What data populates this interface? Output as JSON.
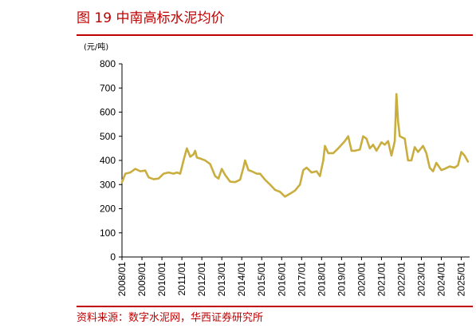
{
  "figure": {
    "title": "图 19 中南高标水泥均价",
    "source": "资料来源：数字水泥网，华西证券研究所"
  },
  "chart_data": {
    "type": "line",
    "title": "图 19 中南高标水泥均价",
    "ylabel": "(元/吨)",
    "xlabel": "",
    "ylim": [
      0,
      800
    ],
    "y_ticks": [
      0,
      100,
      200,
      300,
      400,
      500,
      600,
      700,
      800
    ],
    "x_ticks": [
      "2008/01",
      "2009/01",
      "2010/01",
      "2011/01",
      "2012/01",
      "2013/01",
      "2014/01",
      "2015/01",
      "2016/01",
      "2017/01",
      "2018/01",
      "2019/01",
      "2020/01",
      "2021/01",
      "2022/01",
      "2023/01",
      "2024/01",
      "2025/01"
    ],
    "grid": false,
    "legend": "none",
    "series": [
      {
        "color": "#c9ae3f",
        "points": [
          [
            "2008/01",
            310
          ],
          [
            "2008/03",
            345
          ],
          [
            "2008/06",
            350
          ],
          [
            "2008/09",
            365
          ],
          [
            "2008/12",
            355
          ],
          [
            "2009/03",
            358
          ],
          [
            "2009/05",
            330
          ],
          [
            "2009/08",
            322
          ],
          [
            "2009/11",
            325
          ],
          [
            "2010/02",
            345
          ],
          [
            "2010/05",
            350
          ],
          [
            "2010/08",
            345
          ],
          [
            "2010/10",
            350
          ],
          [
            "2010/12",
            345
          ],
          [
            "2011/02",
            400
          ],
          [
            "2011/04",
            450
          ],
          [
            "2011/06",
            415
          ],
          [
            "2011/08",
            425
          ],
          [
            "2011/09",
            440
          ],
          [
            "2011/10",
            412
          ],
          [
            "2011/12",
            408
          ],
          [
            "2012/03",
            400
          ],
          [
            "2012/06",
            385
          ],
          [
            "2012/09",
            335
          ],
          [
            "2012/11",
            325
          ],
          [
            "2013/01",
            365
          ],
          [
            "2013/03",
            340
          ],
          [
            "2013/06",
            312
          ],
          [
            "2013/09",
            310
          ],
          [
            "2013/12",
            320
          ],
          [
            "2014/02",
            370
          ],
          [
            "2014/03",
            400
          ],
          [
            "2014/05",
            360
          ],
          [
            "2014/07",
            355
          ],
          [
            "2014/10",
            345
          ],
          [
            "2014/12",
            345
          ],
          [
            "2015/03",
            320
          ],
          [
            "2015/06",
            300
          ],
          [
            "2015/09",
            278
          ],
          [
            "2015/12",
            270
          ],
          [
            "2016/03",
            250
          ],
          [
            "2016/06",
            262
          ],
          [
            "2016/09",
            275
          ],
          [
            "2016/12",
            300
          ],
          [
            "2017/02",
            360
          ],
          [
            "2017/04",
            370
          ],
          [
            "2017/07",
            350
          ],
          [
            "2017/10",
            355
          ],
          [
            "2017/12",
            335
          ],
          [
            "2018/02",
            400
          ],
          [
            "2018/03",
            460
          ],
          [
            "2018/05",
            430
          ],
          [
            "2018/08",
            430
          ],
          [
            "2018/11",
            450
          ],
          [
            "2019/03",
            480
          ],
          [
            "2019/05",
            500
          ],
          [
            "2019/07",
            440
          ],
          [
            "2019/09",
            440
          ],
          [
            "2019/12",
            445
          ],
          [
            "2020/02",
            500
          ],
          [
            "2020/04",
            490
          ],
          [
            "2020/06",
            450
          ],
          [
            "2020/08",
            465
          ],
          [
            "2020/10",
            440
          ],
          [
            "2021/01",
            475
          ],
          [
            "2021/03",
            465
          ],
          [
            "2021/05",
            480
          ],
          [
            "2021/07",
            420
          ],
          [
            "2021/09",
            480
          ],
          [
            "2021/10",
            675
          ],
          [
            "2021/11",
            560
          ],
          [
            "2021/12",
            500
          ],
          [
            "2022/03",
            490
          ],
          [
            "2022/05",
            400
          ],
          [
            "2022/07",
            400
          ],
          [
            "2022/09",
            455
          ],
          [
            "2022/11",
            435
          ],
          [
            "2023/02",
            460
          ],
          [
            "2023/04",
            430
          ],
          [
            "2023/06",
            370
          ],
          [
            "2023/08",
            355
          ],
          [
            "2023/10",
            390
          ],
          [
            "2024/01",
            360
          ],
          [
            "2024/03",
            365
          ],
          [
            "2024/06",
            375
          ],
          [
            "2024/09",
            370
          ],
          [
            "2024/11",
            380
          ],
          [
            "2025/01",
            435
          ],
          [
            "2025/03",
            420
          ],
          [
            "2025/05",
            395
          ]
        ]
      }
    ]
  }
}
